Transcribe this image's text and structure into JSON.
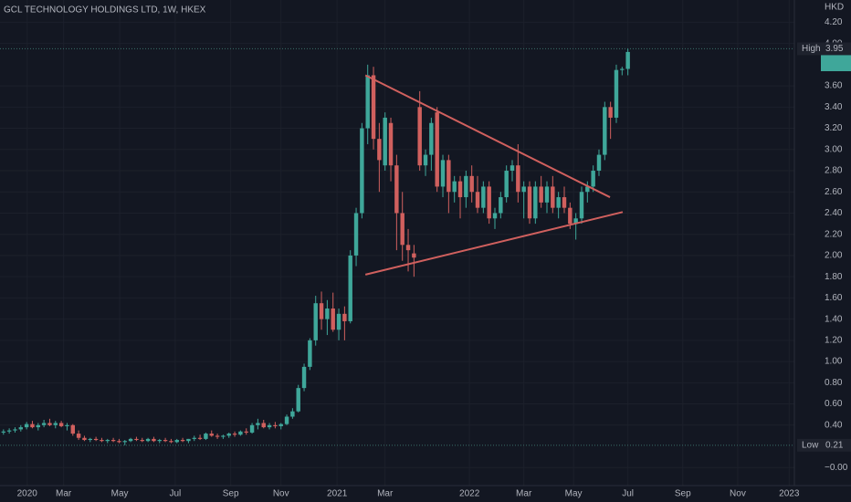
{
  "chart_data": {
    "type": "candlestick",
    "title": "GCL TECHNOLOGY HOLDINGS LTD, 1W, HKEX",
    "currency": "HKD",
    "up_color": "#3fa79a",
    "down_color": "#d0605e",
    "grid": true,
    "open": [
      0.33,
      0.34,
      0.35,
      0.36,
      0.38,
      0.41,
      0.38,
      0.4,
      0.42,
      0.4,
      0.42,
      0.39,
      0.4,
      0.32,
      0.28,
      0.26,
      0.27,
      0.26,
      0.25,
      0.26,
      0.25,
      0.24,
      0.25,
      0.27,
      0.26,
      0.25,
      0.27,
      0.25,
      0.26,
      0.25,
      0.24,
      0.26,
      0.25,
      0.27,
      0.28,
      0.27,
      0.32,
      0.3,
      0.29,
      0.3,
      0.32,
      0.31,
      0.34,
      0.33,
      0.4,
      0.42,
      0.38,
      0.4,
      0.39,
      0.41,
      0.48,
      0.53,
      0.75,
      0.95,
      1.2,
      1.55,
      1.4,
      1.5,
      1.3,
      1.45,
      1.38,
      2.0,
      2.4,
      3.2,
      3.7,
      3.1,
      2.85,
      3.25,
      2.85,
      2.4,
      2.1,
      2.02,
      3.4,
      2.85,
      2.95,
      3.35,
      2.65,
      2.9,
      2.6,
      2.7,
      2.55,
      2.75,
      2.6,
      2.45,
      2.65,
      2.35,
      2.4,
      2.55,
      2.8,
      2.85,
      2.6,
      2.65,
      2.35,
      2.65,
      2.5,
      2.65,
      2.45,
      2.55,
      2.45,
      2.3,
      2.35,
      2.6,
      2.65,
      2.8,
      2.95,
      3.4,
      3.3,
      3.75,
      3.76
    ],
    "high": [
      0.36,
      0.37,
      0.38,
      0.4,
      0.43,
      0.44,
      0.42,
      0.45,
      0.46,
      0.44,
      0.44,
      0.42,
      0.41,
      0.35,
      0.3,
      0.28,
      0.29,
      0.28,
      0.27,
      0.28,
      0.27,
      0.26,
      0.28,
      0.29,
      0.28,
      0.28,
      0.29,
      0.27,
      0.28,
      0.27,
      0.27,
      0.28,
      0.27,
      0.3,
      0.31,
      0.33,
      0.35,
      0.32,
      0.31,
      0.33,
      0.34,
      0.35,
      0.37,
      0.42,
      0.46,
      0.45,
      0.42,
      0.43,
      0.42,
      0.5,
      0.56,
      0.78,
      0.98,
      1.22,
      1.62,
      1.66,
      1.58,
      1.65,
      1.5,
      1.52,
      2.05,
      2.45,
      3.25,
      3.8,
      3.78,
      3.25,
      3.35,
      3.3,
      2.95,
      2.6,
      2.25,
      2.1,
      3.55,
      3.0,
      3.3,
      3.4,
      2.95,
      2.95,
      2.75,
      2.75,
      2.8,
      2.85,
      2.75,
      2.7,
      2.7,
      2.45,
      2.6,
      2.85,
      2.9,
      3.05,
      2.7,
      2.7,
      2.7,
      2.75,
      2.7,
      2.75,
      2.6,
      2.65,
      2.5,
      2.4,
      2.65,
      2.7,
      2.85,
      3.0,
      3.45,
      3.45,
      3.8,
      3.78,
      3.95
    ],
    "low": [
      0.31,
      0.32,
      0.33,
      0.34,
      0.36,
      0.37,
      0.35,
      0.38,
      0.39,
      0.37,
      0.38,
      0.35,
      0.3,
      0.26,
      0.25,
      0.24,
      0.25,
      0.24,
      0.23,
      0.24,
      0.23,
      0.21,
      0.24,
      0.25,
      0.24,
      0.24,
      0.24,
      0.23,
      0.24,
      0.23,
      0.23,
      0.24,
      0.23,
      0.25,
      0.26,
      0.26,
      0.29,
      0.27,
      0.27,
      0.28,
      0.29,
      0.3,
      0.31,
      0.32,
      0.36,
      0.37,
      0.36,
      0.37,
      0.36,
      0.4,
      0.46,
      0.52,
      0.72,
      0.92,
      1.15,
      1.3,
      1.25,
      1.28,
      1.2,
      1.2,
      1.36,
      1.9,
      2.35,
      3.05,
      3.0,
      2.6,
      2.8,
      2.7,
      2.05,
      1.95,
      1.85,
      1.8,
      2.8,
      2.75,
      2.8,
      2.6,
      2.55,
      2.4,
      2.5,
      2.35,
      2.45,
      2.5,
      2.4,
      2.4,
      2.3,
      2.25,
      2.35,
      2.5,
      2.7,
      2.5,
      2.35,
      2.3,
      2.3,
      2.45,
      2.4,
      2.4,
      2.35,
      2.4,
      2.25,
      2.15,
      2.3,
      2.5,
      2.6,
      2.75,
      2.9,
      3.1,
      3.25,
      3.7,
      3.7
    ],
    "close": [
      0.34,
      0.35,
      0.36,
      0.38,
      0.41,
      0.38,
      0.4,
      0.42,
      0.4,
      0.42,
      0.39,
      0.4,
      0.32,
      0.28,
      0.26,
      0.27,
      0.26,
      0.25,
      0.26,
      0.25,
      0.24,
      0.25,
      0.27,
      0.26,
      0.25,
      0.27,
      0.25,
      0.26,
      0.25,
      0.24,
      0.26,
      0.25,
      0.27,
      0.28,
      0.27,
      0.32,
      0.3,
      0.29,
      0.3,
      0.32,
      0.31,
      0.34,
      0.33,
      0.4,
      0.42,
      0.38,
      0.4,
      0.39,
      0.41,
      0.48,
      0.53,
      0.75,
      0.95,
      1.2,
      1.55,
      1.4,
      1.5,
      1.3,
      1.45,
      1.38,
      2.0,
      2.4,
      3.2,
      3.7,
      3.1,
      2.9,
      3.3,
      2.85,
      2.4,
      2.1,
      2.05,
      1.98,
      2.85,
      2.95,
      3.25,
      2.65,
      2.9,
      2.6,
      2.7,
      2.55,
      2.75,
      2.6,
      2.45,
      2.65,
      2.35,
      2.4,
      2.55,
      2.8,
      2.85,
      2.6,
      2.65,
      2.35,
      2.65,
      2.5,
      2.65,
      2.45,
      2.55,
      2.45,
      2.3,
      2.35,
      2.6,
      2.65,
      2.8,
      2.95,
      3.4,
      3.3,
      3.75,
      3.76,
      3.92
    ],
    "xlim": [
      -0.6,
      136.8
    ],
    "xticks": [
      {
        "value": 4.1,
        "label": "2020"
      },
      {
        "value": 10.4,
        "label": "Mar"
      },
      {
        "value": 20.1,
        "label": "May"
      },
      {
        "value": 29.7,
        "label": "Jul"
      },
      {
        "value": 39.3,
        "label": "Sep"
      },
      {
        "value": 48,
        "label": "Nov"
      },
      {
        "value": 57.7,
        "label": "2021"
      },
      {
        "value": 66,
        "label": "Mar"
      },
      {
        "value": 80.6,
        "label": "2022"
      },
      {
        "value": 90,
        "label": "Mar"
      },
      {
        "value": 98.6,
        "label": "May"
      },
      {
        "value": 108,
        "label": "Jul"
      },
      {
        "value": 117.5,
        "label": "Sep"
      },
      {
        "value": 127,
        "label": "Nov"
      },
      {
        "value": 135.9,
        "label": "2023"
      }
    ],
    "ylim": [
      -0.17,
      4.41
    ],
    "yticks": [
      {
        "value": 4.2,
        "label": "4.20"
      },
      {
        "value": 4.0,
        "label": "4.00"
      },
      {
        "value": 3.6,
        "label": "3.60"
      },
      {
        "value": 3.4,
        "label": "3.40"
      },
      {
        "value": 3.2,
        "label": "3.20"
      },
      {
        "value": 3.0,
        "label": "3.00"
      },
      {
        "value": 2.8,
        "label": "2.80"
      },
      {
        "value": 2.6,
        "label": "2.60"
      },
      {
        "value": 2.4,
        "label": "2.40"
      },
      {
        "value": 2.2,
        "label": "2.20"
      },
      {
        "value": 2.0,
        "label": "2.00"
      },
      {
        "value": 1.8,
        "label": "1.80"
      },
      {
        "value": 1.6,
        "label": "1.60"
      },
      {
        "value": 1.4,
        "label": "1.40"
      },
      {
        "value": 1.2,
        "label": "1.20"
      },
      {
        "value": 1.0,
        "label": "1.00"
      },
      {
        "value": 0.8,
        "label": "0.80"
      },
      {
        "value": 0.6,
        "label": "0.60"
      },
      {
        "value": 0.4,
        "label": "0.40"
      },
      {
        "value": 0,
        "label": "−0.00"
      }
    ],
    "high_marker": {
      "label": "High",
      "value": 3.95
    },
    "low_marker": {
      "label": "Low",
      "value": 0.21
    },
    "trendline_color": "#d0605e",
    "trendlines": [
      {
        "x": [
          62.6,
          104.9
        ],
        "y": [
          3.7,
          2.55
        ]
      },
      {
        "x": [
          62.6,
          107.1
        ],
        "y": [
          1.82,
          2.41
        ]
      }
    ]
  }
}
